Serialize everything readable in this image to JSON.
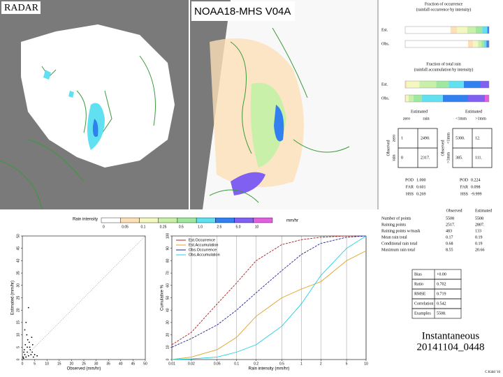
{
  "maps": [
    {
      "label": "RADAR"
    },
    {
      "label": "NOAA18-MHS V04A"
    }
  ],
  "occurrence": {
    "title": "Fraction of occurrence",
    "subtitle": "(rainfall occurrence by intensity)",
    "rows": [
      {
        "label": "Est.",
        "values": [
          54,
          8,
          12,
          10,
          8,
          6,
          2,
          0,
          0
        ]
      },
      {
        "label": "Obs.",
        "values": [
          75,
          6,
          6,
          4,
          3,
          3,
          2,
          1,
          0
        ]
      }
    ]
  },
  "total_rain": {
    "title": "Fraction of total rain",
    "subtitle": "(rainfall accumulation by intensity)",
    "rows": [
      {
        "label": "Est.",
        "values": [
          0,
          2,
          15,
          20,
          15,
          18,
          20,
          10,
          0
        ]
      },
      {
        "label": "Obs.",
        "values": [
          0,
          1,
          3,
          6,
          10,
          25,
          30,
          20,
          5
        ]
      }
    ]
  },
  "colorbar": {
    "title": "Rain intensity",
    "unit": "mm/hr",
    "labels": [
      "0",
      "0.05",
      "0.1",
      "0.25",
      "0.5",
      "1.0",
      "2.5",
      "5.0",
      "10"
    ],
    "colors": [
      "#ffffff",
      "#fde0b8",
      "#f4f8c0",
      "#c8f0a8",
      "#a0e8a0",
      "#60e0f0",
      "#3080f0",
      "#8060f0",
      "#e060e0"
    ]
  },
  "contingency": [
    {
      "col_header": "Estimated",
      "cols": [
        "zero",
        "rain"
      ],
      "row_header": "Observed",
      "rows": [
        "zero",
        "rain"
      ],
      "cells": [
        [
          "1",
          "2490."
        ],
        [
          "0",
          "2317."
        ]
      ],
      "scores": [
        [
          "POD",
          "1.000"
        ],
        [
          "FAR",
          "0.601"
        ],
        [
          "HSS",
          "0.269"
        ]
      ]
    },
    {
      "col_header": "Estimated",
      "cols": [
        "<1mm",
        ">1mm"
      ],
      "row_header": "Observed",
      "rows": [
        "<1mm",
        ">1mm"
      ],
      "cells": [
        [
          "5300.",
          "12."
        ],
        [
          "385.",
          "111."
        ]
      ],
      "scores": [
        [
          "POD",
          "0.224"
        ],
        [
          "FAR",
          "0.098"
        ],
        [
          "HSS",
          "-9.999"
        ]
      ]
    }
  ],
  "stats": {
    "headers": [
      "Observed",
      "Estimated"
    ],
    "rows": [
      [
        "Number of points",
        "5508",
        "5508"
      ],
      [
        "Raining points",
        "2517.",
        "2807."
      ],
      [
        "Raining points w/mask",
        "483",
        "133"
      ],
      [
        "Mean rain total",
        "0.17",
        "0.19"
      ],
      [
        "Conditional rain total",
        "0.68",
        "0.19"
      ],
      [
        "Maximum rain total",
        "8.55",
        "20.66"
      ]
    ]
  },
  "scores": [
    [
      "Bias",
      "+0.00"
    ],
    [
      "Ratio",
      "0.702"
    ],
    [
      "RMSE",
      "0.719"
    ],
    [
      "Correlation",
      "0.542"
    ],
    [
      "Examples",
      "5508."
    ]
  ],
  "footer": {
    "mode": "Instantaneous",
    "date": "20141104_0448",
    "credit": "C Kidd '16"
  },
  "chart_data": [
    {
      "type": "scatter",
      "xlabel": "Observed (mm/hr)",
      "ylabel": "Estimated (mm/hr)",
      "color": "#000000",
      "x": [
        0.5,
        1,
        1.5,
        2,
        2.5,
        3,
        0.8,
        1.2,
        3.5,
        4,
        4.5,
        2.2,
        5,
        1.8,
        0.3,
        2.8,
        3.2,
        6,
        1,
        2,
        0.6,
        4.2,
        3.8,
        1.5,
        2.5
      ],
      "y": [
        0.5,
        2,
        1,
        3,
        1.5,
        5,
        4,
        6,
        2,
        3,
        1,
        8,
        2,
        10,
        1,
        7,
        4,
        1.5,
        12,
        5,
        3,
        6,
        9,
        15,
        21
      ],
      "xlim": [
        0,
        50
      ],
      "ylim": [
        0,
        50
      ],
      "xticks": [
        0,
        5,
        10,
        15,
        20,
        25,
        30,
        35,
        40,
        45,
        50
      ],
      "yticks": [
        0,
        5,
        10,
        15,
        20,
        25,
        30,
        35,
        40,
        45,
        50
      ]
    },
    {
      "type": "line",
      "xlabel": "Rain intensity (mm/hr)",
      "ylabel": "Cumulative %",
      "log_x": true,
      "grid": true,
      "x": [
        0.01,
        0.02,
        0.05,
        0.1,
        0.2,
        0.5,
        1,
        2,
        5,
        10
      ],
      "xlim": [
        0.01,
        10
      ],
      "ylim": [
        0,
        100
      ],
      "xticks": [
        0.01,
        0.02,
        0.05,
        0.1,
        0.2,
        0.5,
        1,
        2,
        5,
        10
      ],
      "yticks": [
        0,
        10,
        20,
        30,
        40,
        50,
        60,
        70,
        80,
        90,
        100
      ],
      "series": [
        {
          "name": "Est.Occurrence",
          "color": "#b02020",
          "values": [
            12,
            22,
            45,
            62,
            80,
            93,
            97,
            99,
            100,
            100
          ]
        },
        {
          "name": "Est.Accumulation",
          "color": "#e0a020",
          "values": [
            0,
            2,
            8,
            18,
            35,
            50,
            57,
            63,
            80,
            88
          ]
        },
        {
          "name": "Obs.Occurrence",
          "color": "#2020a0",
          "values": [
            10,
            17,
            28,
            40,
            54,
            72,
            85,
            94,
            99,
            100
          ]
        },
        {
          "name": "Obs.Accumulation",
          "color": "#20d0e0",
          "values": [
            0,
            0.5,
            2,
            6,
            12,
            27,
            45,
            68,
            90,
            100
          ]
        }
      ]
    }
  ]
}
